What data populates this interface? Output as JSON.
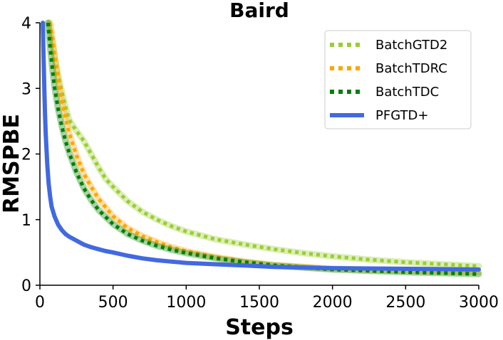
{
  "chart_data": {
    "type": "line",
    "title": "Baird",
    "xlabel": "Steps",
    "ylabel": "RMSPBE",
    "xlim": [
      0,
      3000
    ],
    "ylim": [
      0,
      4
    ],
    "xticks": [
      "0",
      "500",
      "1000",
      "1500",
      "2000",
      "2500",
      "3000"
    ],
    "yticks": [
      "0",
      "1",
      "2",
      "3",
      "4"
    ],
    "grid": false,
    "legend_position": "top-right",
    "series": [
      {
        "name": "BatchGTD2",
        "color": "#9acd32",
        "style": "dotted",
        "x": [
          60,
          80,
          100,
          125,
          150,
          175,
          200,
          250,
          300,
          350,
          400,
          450,
          500,
          600,
          700,
          800,
          900,
          1000,
          1200,
          1400,
          1600,
          1800,
          2000,
          2250,
          2500,
          2750,
          3000
        ],
        "y": [
          4.0,
          3.75,
          3.5,
          3.2,
          2.95,
          2.72,
          2.52,
          2.35,
          2.2,
          2.0,
          1.8,
          1.62,
          1.5,
          1.28,
          1.12,
          1.0,
          0.9,
          0.82,
          0.7,
          0.62,
          0.55,
          0.49,
          0.44,
          0.39,
          0.35,
          0.32,
          0.29
        ]
      },
      {
        "name": "BatchTDRC",
        "color": "#ffa500",
        "style": "dotted",
        "x": [
          70,
          90,
          110,
          130,
          150,
          175,
          200,
          250,
          300,
          350,
          400,
          500,
          600,
          700,
          800,
          900,
          1000,
          1200,
          1400,
          1600,
          1800,
          2000,
          2500,
          3000
        ],
        "y": [
          4.0,
          3.7,
          3.35,
          3.05,
          2.8,
          2.55,
          2.32,
          1.98,
          1.7,
          1.5,
          1.32,
          1.05,
          0.87,
          0.75,
          0.66,
          0.58,
          0.52,
          0.43,
          0.36,
          0.31,
          0.28,
          0.25,
          0.22,
          0.2
        ]
      },
      {
        "name": "BatchTDC",
        "color": "#008000",
        "style": "dotted",
        "x": [
          55,
          70,
          85,
          100,
          125,
          150,
          175,
          200,
          250,
          300,
          350,
          400,
          500,
          600,
          700,
          800,
          900,
          1000,
          1200,
          1400,
          1600,
          1800,
          2000,
          2500,
          3000
        ],
        "y": [
          4.0,
          3.62,
          3.3,
          3.02,
          2.68,
          2.42,
          2.2,
          2.02,
          1.72,
          1.48,
          1.3,
          1.15,
          0.93,
          0.78,
          0.68,
          0.6,
          0.54,
          0.49,
          0.41,
          0.35,
          0.3,
          0.27,
          0.24,
          0.2,
          0.17
        ]
      },
      {
        "name": "PFGTD+",
        "color": "#4169e1",
        "style": "solid",
        "x": [
          20,
          25,
          30,
          35,
          40,
          50,
          60,
          70,
          80,
          100,
          125,
          150,
          175,
          200,
          250,
          300,
          350,
          400,
          450,
          500,
          600,
          700,
          800,
          900,
          1000,
          1200,
          1400,
          1600,
          1800,
          2000,
          2500,
          3000
        ],
        "y": [
          4.0,
          3.5,
          3.0,
          2.6,
          2.3,
          1.85,
          1.55,
          1.35,
          1.2,
          1.05,
          0.92,
          0.84,
          0.78,
          0.74,
          0.68,
          0.62,
          0.58,
          0.55,
          0.52,
          0.5,
          0.45,
          0.41,
          0.38,
          0.36,
          0.34,
          0.32,
          0.3,
          0.28,
          0.27,
          0.26,
          0.25,
          0.24
        ]
      }
    ]
  }
}
